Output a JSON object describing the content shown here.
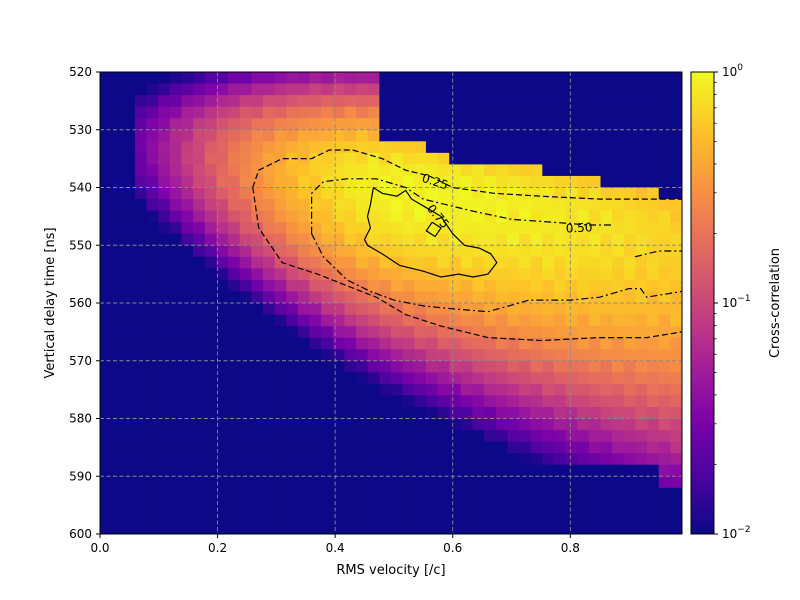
{
  "chart_data": {
    "type": "heatmap",
    "title": "",
    "xlabel": "RMS velocity [/c]",
    "ylabel": "Vertical delay time [ns]",
    "xlim": [
      0.0,
      0.99
    ],
    "ylim": [
      600,
      520
    ],
    "x_ticks": [
      {
        "value": 0.0,
        "label": "0.0"
      },
      {
        "value": 0.2,
        "label": "0.2"
      },
      {
        "value": 0.4,
        "label": "0.4"
      },
      {
        "value": 0.6,
        "label": "0.6"
      },
      {
        "value": 0.8,
        "label": "0.8"
      }
    ],
    "y_ticks": [
      {
        "value": 520,
        "label": "520"
      },
      {
        "value": 530,
        "label": "530"
      },
      {
        "value": 540,
        "label": "540"
      },
      {
        "value": 550,
        "label": "550"
      },
      {
        "value": 560,
        "label": "560"
      },
      {
        "value": 570,
        "label": "570"
      },
      {
        "value": 580,
        "label": "580"
      },
      {
        "value": 590,
        "label": "590"
      },
      {
        "value": 600,
        "label": "600"
      }
    ],
    "grid": true,
    "colormap": "plasma",
    "colorbar": {
      "label": "Cross-correlation",
      "scale": "log",
      "range": [
        0.01,
        1.0
      ],
      "ticks": [
        {
          "value": 1.0,
          "base": "10",
          "exp": "0"
        },
        {
          "value": 0.1,
          "base": "10",
          "exp": "−1"
        },
        {
          "value": 0.01,
          "base": "10",
          "exp": "−2"
        }
      ]
    },
    "heatmap_model": {
      "peak_value": 0.95,
      "peak_x": 0.52,
      "peak_y": 545,
      "ridge_slope_ns_per_c": 16.5,
      "floor": 0.01
    },
    "contours": [
      {
        "level_label": "0.25",
        "style": "dashed",
        "points": [
          [
            0.26,
            540
          ],
          [
            0.27,
            537
          ],
          [
            0.31,
            535
          ],
          [
            0.36,
            535
          ],
          [
            0.39,
            533.5
          ],
          [
            0.43,
            533.5
          ],
          [
            0.48,
            535
          ],
          [
            0.52,
            537
          ],
          [
            0.56,
            538
          ],
          [
            0.6,
            540
          ],
          [
            0.67,
            541
          ],
          [
            0.75,
            541.5
          ],
          [
            0.85,
            542
          ],
          [
            0.99,
            542
          ]
        ]
      },
      {
        "level_label": "",
        "style": "dashed",
        "points": [
          [
            0.26,
            540
          ],
          [
            0.27,
            547
          ],
          [
            0.31,
            553
          ],
          [
            0.37,
            555
          ],
          [
            0.42,
            557
          ],
          [
            0.47,
            559
          ],
          [
            0.52,
            562
          ],
          [
            0.58,
            564
          ],
          [
            0.66,
            566
          ],
          [
            0.75,
            566.5
          ],
          [
            0.85,
            566
          ],
          [
            0.93,
            566
          ],
          [
            0.99,
            565
          ]
        ]
      },
      {
        "level_label": "0.50",
        "style": "dashdot",
        "points": [
          [
            0.36,
            548
          ],
          [
            0.38,
            552
          ],
          [
            0.42,
            556
          ],
          [
            0.46,
            558
          ],
          [
            0.5,
            559.5
          ],
          [
            0.55,
            560.5
          ],
          [
            0.6,
            561
          ],
          [
            0.66,
            561.5
          ],
          [
            0.73,
            559.5
          ],
          [
            0.8,
            559.5
          ],
          [
            0.85,
            559
          ],
          [
            0.9,
            557.5
          ],
          [
            0.92,
            557.5
          ],
          [
            0.93,
            559
          ],
          [
            0.99,
            558
          ],
          [
            0.99,
            556
          ]
        ]
      },
      {
        "level_label": "",
        "style": "dashdot",
        "points": [
          [
            0.36,
            548
          ],
          [
            0.36,
            541
          ],
          [
            0.38,
            539
          ],
          [
            0.42,
            538.5
          ],
          [
            0.47,
            538.5
          ],
          [
            0.52,
            540
          ],
          [
            0.55,
            542
          ],
          [
            0.63,
            544
          ],
          [
            0.7,
            545.5
          ],
          [
            0.77,
            546
          ],
          [
            0.83,
            546.5
          ],
          [
            0.87,
            546.5
          ]
        ]
      },
      {
        "level_label": "",
        "style": "dashdot",
        "points": [
          [
            0.91,
            552
          ],
          [
            0.95,
            551
          ],
          [
            0.99,
            551
          ]
        ]
      },
      {
        "level_label": "0.75",
        "style": "solid",
        "points": [
          [
            0.465,
            540
          ],
          [
            0.48,
            541
          ],
          [
            0.505,
            541.5
          ],
          [
            0.52,
            540.5
          ],
          [
            0.53,
            542
          ],
          [
            0.555,
            543.5
          ],
          [
            0.58,
            545
          ],
          [
            0.6,
            548
          ],
          [
            0.62,
            550
          ],
          [
            0.645,
            550.5
          ],
          [
            0.665,
            551.5
          ],
          [
            0.675,
            553
          ],
          [
            0.66,
            555
          ],
          [
            0.635,
            555.5
          ],
          [
            0.61,
            555
          ],
          [
            0.58,
            555.5
          ],
          [
            0.55,
            554.5
          ],
          [
            0.51,
            553.5
          ],
          [
            0.48,
            551.5
          ],
          [
            0.455,
            550
          ],
          [
            0.45,
            549
          ],
          [
            0.46,
            547
          ],
          [
            0.455,
            545
          ],
          [
            0.46,
            543
          ],
          [
            0.465,
            540
          ]
        ]
      },
      {
        "level_label": "",
        "style": "solid",
        "points": [
          [
            0.565,
            546
          ],
          [
            0.58,
            547
          ],
          [
            0.57,
            548.5
          ],
          [
            0.555,
            547.5
          ],
          [
            0.565,
            546
          ]
        ]
      }
    ],
    "contour_labels": [
      {
        "text": "0.25",
        "x": 0.57,
        "y": 539,
        "rotate": 18
      },
      {
        "text": "0.75",
        "x": 0.575,
        "y": 545,
        "rotate": 50
      },
      {
        "text": "0.50",
        "x": 0.815,
        "y": 547,
        "rotate": -3
      }
    ]
  }
}
